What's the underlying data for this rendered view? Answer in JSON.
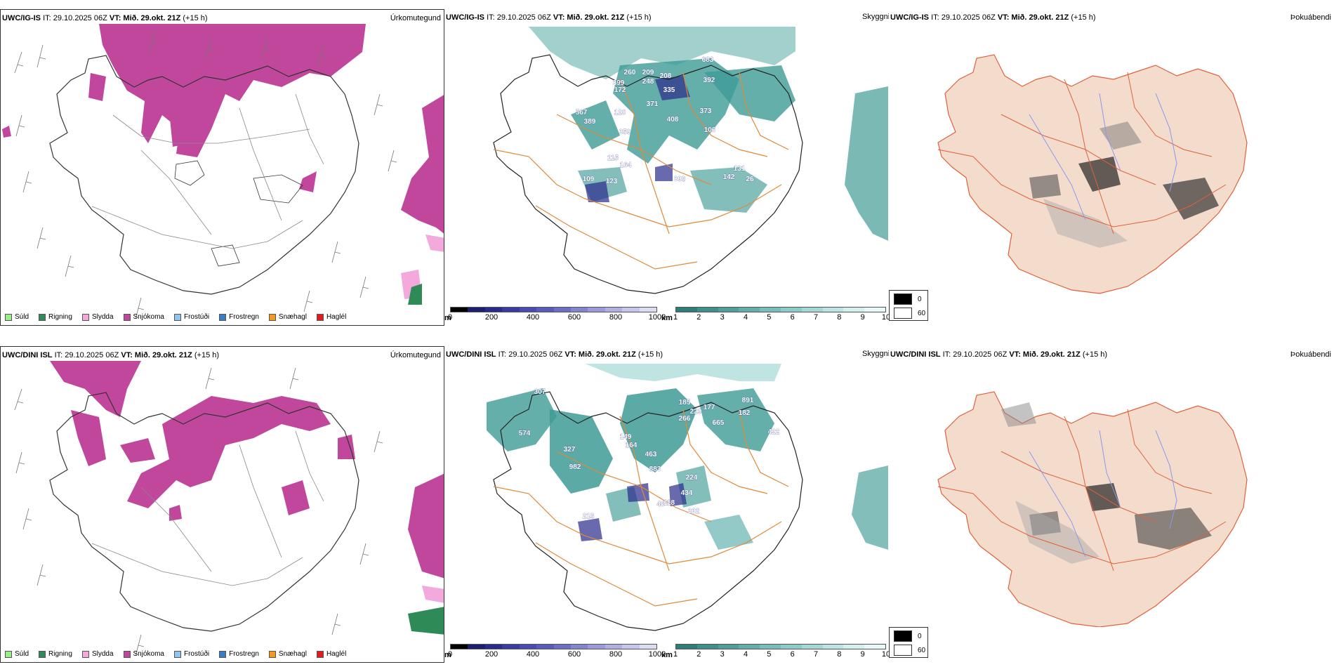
{
  "colors": {
    "snow": "#c0479b",
    "rain": "#2e8b57",
    "sleet": "#f0a8d8",
    "teal": "#3f9b96",
    "road_orange": "#e08a3a",
    "road_red": "#e0603a",
    "land_fill": "#f4dccd",
    "cloud_dark": "#1e1e6e",
    "river": "#8899ee"
  },
  "legend_precip": [
    {
      "label": "Súld",
      "color": "#99ee88"
    },
    {
      "label": "Rigning",
      "color": "#2e8b57"
    },
    {
      "label": "Slydda",
      "color": "#f3a9dc"
    },
    {
      "label": "Snjókoma",
      "color": "#c0479b"
    },
    {
      "label": "Frostúði",
      "color": "#8ec4ee"
    },
    {
      "label": "Frostregn",
      "color": "#3a7bc8"
    },
    {
      "label": "Snæhagl",
      "color": "#f19a20"
    },
    {
      "label": "Haglél",
      "color": "#e01c1c"
    }
  ],
  "colorbar_cloudbase": {
    "unit": "m",
    "ticks": [
      "0",
      "200",
      "400",
      "600",
      "800",
      "1000"
    ],
    "colors": [
      "#000000",
      "#1e1e6e",
      "#2a2a8a",
      "#3a3aa0",
      "#4a4ab0",
      "#5a5ab8",
      "#6e6ec2",
      "#8484cc",
      "#9a9ad6",
      "#b0b0e0",
      "#c6c6ea",
      "#dcdcf4"
    ]
  },
  "colorbar_visibility": {
    "unit": "km",
    "ticks": [
      "1",
      "2",
      "3",
      "4",
      "5",
      "6",
      "7",
      "8",
      "9",
      "10"
    ],
    "colors": [
      "#2e7d78",
      "#3f8f8a",
      "#519f9a",
      "#64aeaa",
      "#78bdb9",
      "#8ecbc8",
      "#a5d8d5",
      "#bde4e2",
      "#d4efed",
      "#eaf8f7"
    ]
  },
  "cover_legend": {
    "black": "0",
    "white": "60"
  },
  "rows": [
    {
      "header": {
        "model": "UWC/IG-IS",
        "it": "IT: 29.10.2025 06Z",
        "vt": "VT: Mið. 29.okt. 21Z",
        "lead": "(+15 h)"
      },
      "precip_label": "Úrkomutegund",
      "sky_label": "Skyggni",
      "fog_label": "Þokuábendi",
      "cloud_labels": [
        "683",
        "392",
        "399",
        "260",
        "209",
        "208",
        "248",
        "172",
        "335",
        "371",
        "120",
        "408",
        "373",
        "567",
        "389",
        "359",
        "106",
        "115",
        "164",
        "109",
        "123",
        "398",
        "142",
        "131",
        "26"
      ]
    },
    {
      "header": {
        "model": "UWC/DINI ISL",
        "it": "IT: 29.10.2025 06Z",
        "vt": "VT: Mið. 29.okt. 21Z",
        "lead": "(+15 h)"
      },
      "precip_label": "Úrkomutegund",
      "sky_label": "Skyggni",
      "fog_label": "Þokuábendi",
      "cloud_labels": [
        "307",
        "574",
        "185",
        "229",
        "177",
        "891",
        "182",
        "266",
        "665",
        "422",
        "149",
        "327",
        "164",
        "463",
        "982",
        "883",
        "224",
        "434",
        "218",
        "332",
        "46",
        "118"
      ]
    }
  ]
}
